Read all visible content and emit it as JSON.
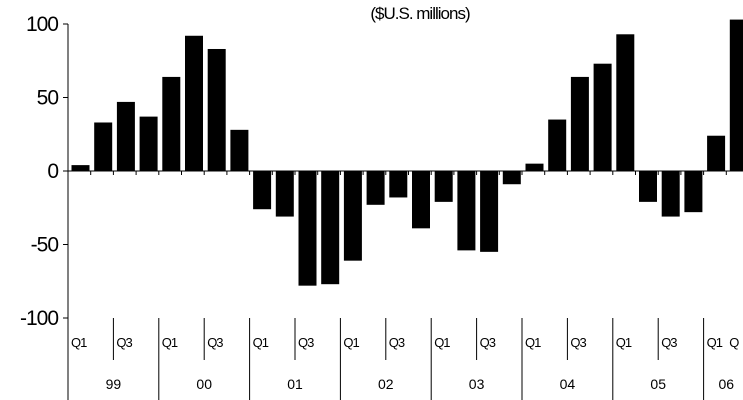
{
  "chart_data": {
    "type": "bar",
    "title": "",
    "subtitle": "($U.S. millions)",
    "xlabel": "",
    "ylabel": "",
    "ylim": [
      -100,
      100
    ],
    "yticks": [
      "100",
      "50",
      "0",
      "-50",
      "-100"
    ],
    "grid": false,
    "categories": [
      "99 Q1",
      "99 Q2",
      "99 Q3",
      "99 Q4",
      "00 Q1",
      "00 Q2",
      "00 Q3",
      "00 Q4",
      "01 Q1",
      "01 Q2",
      "01 Q3",
      "01 Q4",
      "02 Q1",
      "02 Q2",
      "02 Q3",
      "02 Q4",
      "03 Q1",
      "03 Q2",
      "03 Q3",
      "03 Q4",
      "04 Q1",
      "04 Q2",
      "04 Q3",
      "04 Q4",
      "05 Q1",
      "05 Q2",
      "05 Q3",
      "05 Q4",
      "06 Q1",
      "06 Q2"
    ],
    "values": [
      4,
      33,
      47,
      37,
      64,
      92,
      83,
      28,
      -26,
      -31,
      -78,
      -77,
      -61,
      -23,
      -18,
      -39,
      -21,
      -54,
      -55,
      -9,
      5,
      35,
      64,
      73,
      93,
      -21,
      -31,
      -28,
      24,
      103
    ],
    "quarter_labels": [
      "Q1",
      "",
      "Q3",
      "",
      "Q1",
      "",
      "Q3",
      "",
      "Q1",
      "",
      "Q3",
      "",
      "Q1",
      "",
      "Q3",
      "",
      "Q1",
      "",
      "Q3",
      "",
      "Q1",
      "",
      "Q3",
      "",
      "Q1",
      "",
      "Q3",
      "",
      "Q1",
      "Q"
    ],
    "years": [
      "99",
      "00",
      "01",
      "02",
      "03",
      "04",
      "05",
      "06"
    ],
    "bar_color": "#000000"
  }
}
